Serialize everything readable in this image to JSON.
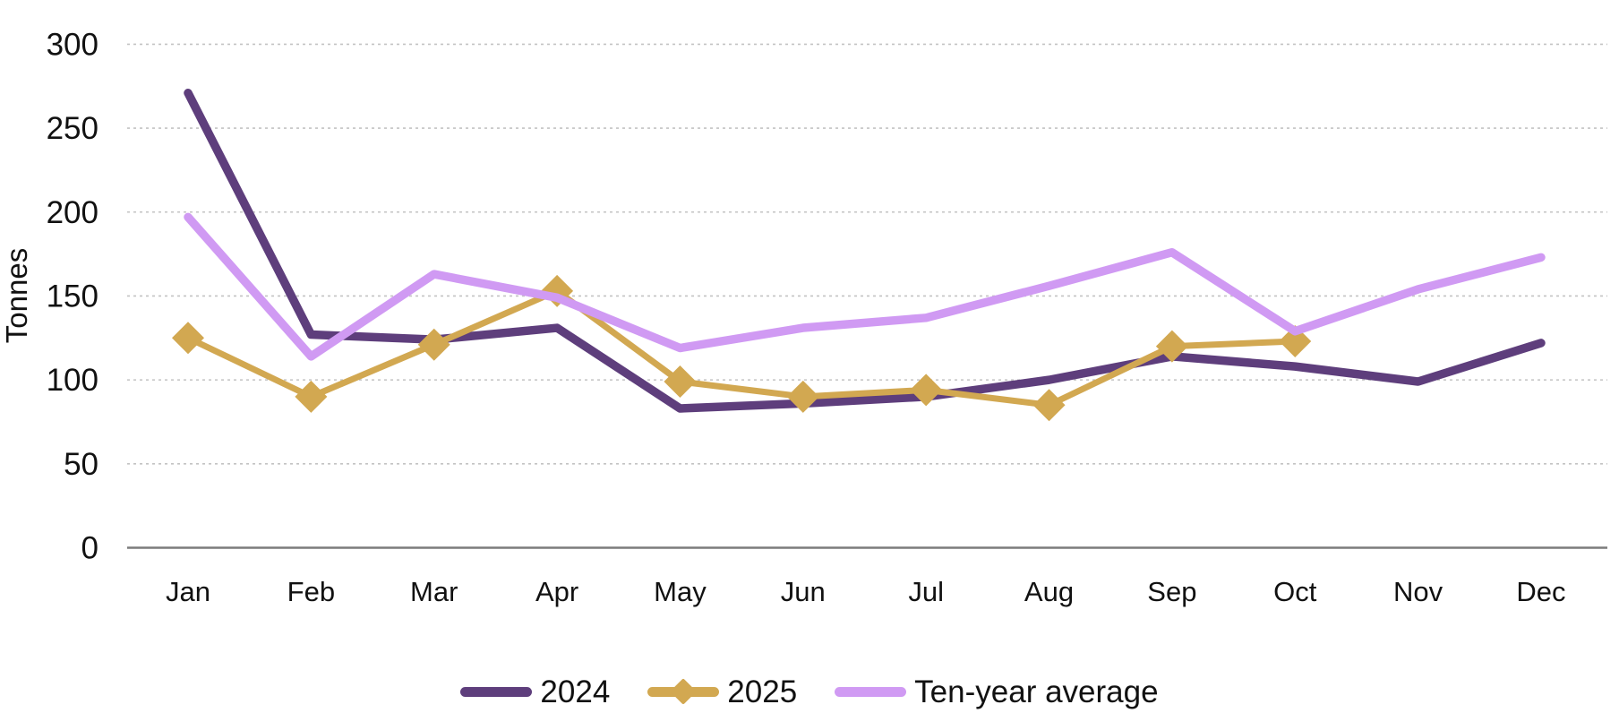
{
  "chart_data": {
    "type": "line",
    "title": "",
    "xlabel": "",
    "ylabel": "Tonnes",
    "categories": [
      "Jan",
      "Feb",
      "Mar",
      "Apr",
      "May",
      "Jun",
      "Jul",
      "Aug",
      "Sep",
      "Oct",
      "Nov",
      "Dec"
    ],
    "ylim": [
      0,
      300
    ],
    "y_ticks": [
      0,
      50,
      100,
      150,
      200,
      250,
      300
    ],
    "grid": "horizontal-dashed",
    "legend_position": "bottom-center",
    "series": [
      {
        "name": "2024",
        "color": "#5e3e7c",
        "marker": "none",
        "line_width": 9.5,
        "values": [
          271,
          127,
          124,
          131,
          83,
          86,
          90,
          100,
          114,
          108,
          99,
          122
        ]
      },
      {
        "name": "2025",
        "color": "#d2a851",
        "marker": "diamond",
        "line_width": 7,
        "values": [
          125,
          90,
          121,
          153,
          99,
          90,
          94,
          85,
          120,
          123,
          null,
          null
        ]
      },
      {
        "name": "Ten-year average",
        "color": "#d09af3",
        "marker": "none",
        "line_width": 9.5,
        "values": [
          197,
          114,
          163,
          149,
          119,
          131,
          137,
          156,
          176,
          129,
          154,
          173
        ]
      }
    ],
    "colors": {
      "gridline": "#c3c3c3",
      "axis_line": "#7c7c7c",
      "text": "#111111",
      "background": "#ffffff"
    }
  }
}
